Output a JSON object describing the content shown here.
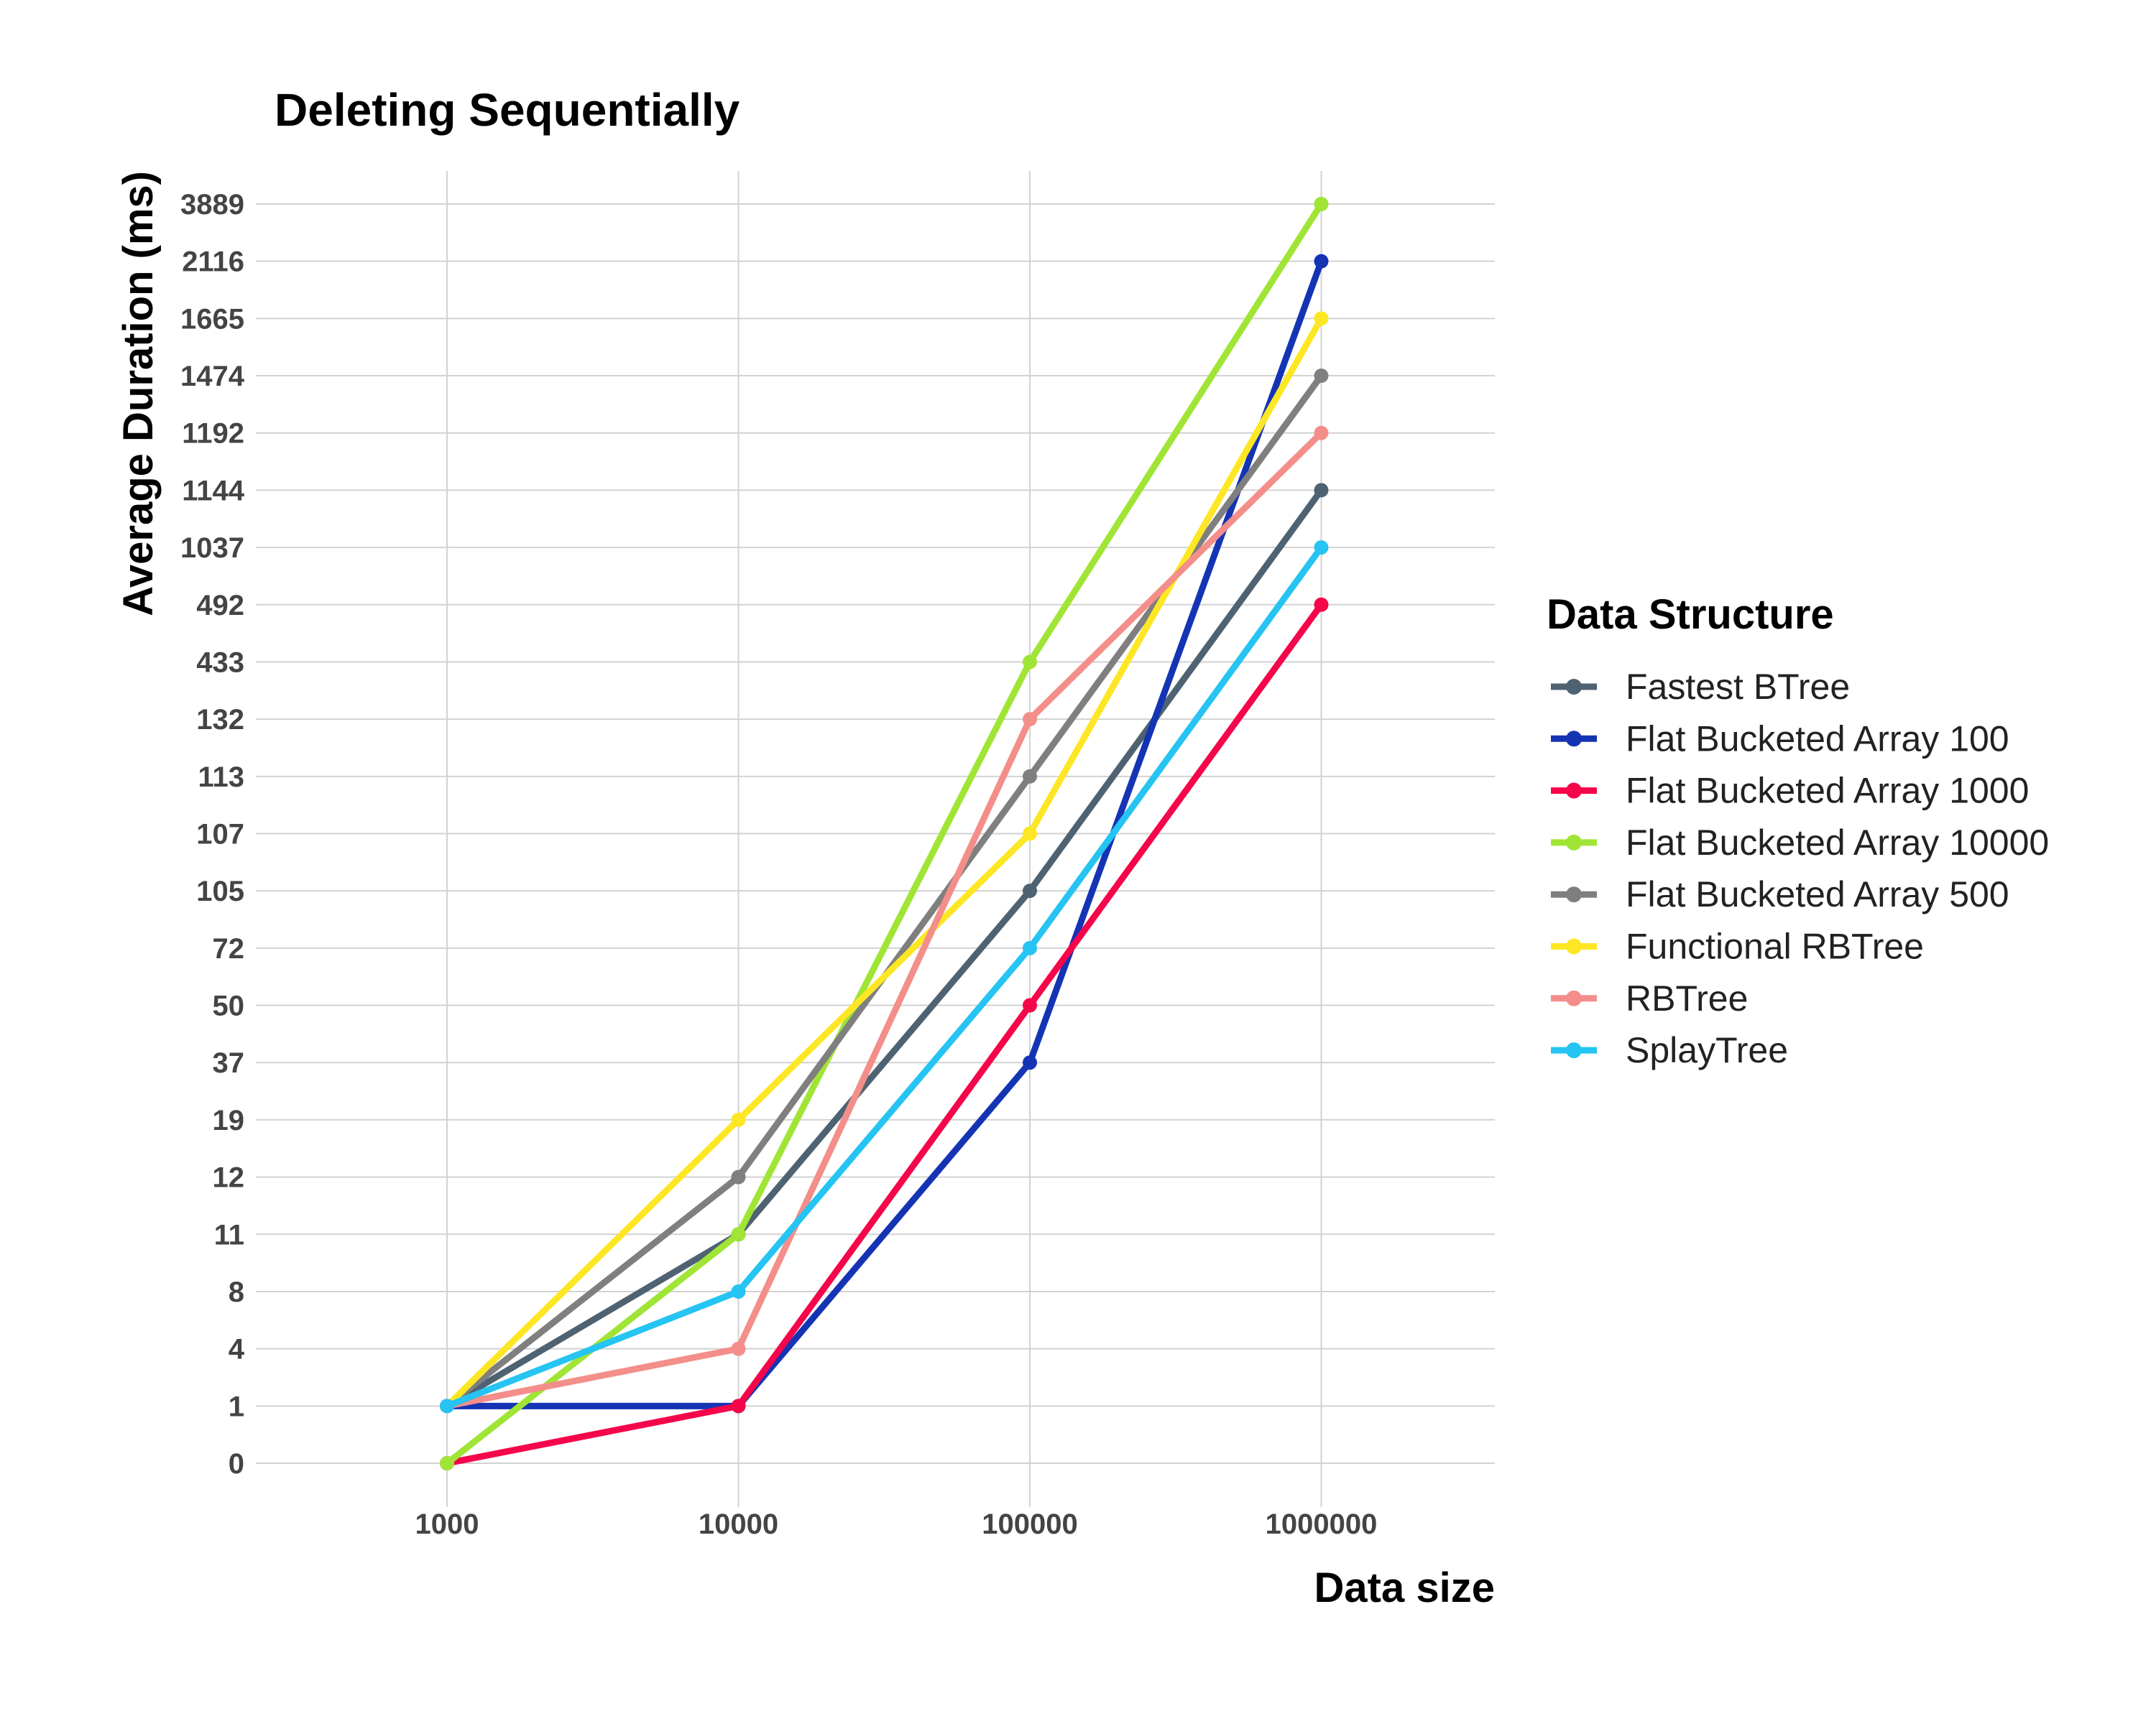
{
  "chart_data": {
    "type": "line",
    "title": "Deleting Sequentially",
    "xlabel": "Data size",
    "ylabel": "Average Duration (ms)",
    "x_scale": "log",
    "x": [
      1000,
      10000,
      100000,
      1000000
    ],
    "x_tick_labels": [
      "1000",
      "10000",
      "100000",
      "1000000"
    ],
    "y_scale": "categorical",
    "y_tick_labels": [
      "0",
      "1",
      "4",
      "8",
      "11",
      "12",
      "19",
      "37",
      "50",
      "72",
      "105",
      "107",
      "113",
      "132",
      "433",
      "492",
      "1037",
      "1144",
      "1192",
      "1474",
      "1665",
      "2116",
      "3889"
    ],
    "grid": true,
    "legend": {
      "title": "Data Structure",
      "placement": "right"
    },
    "series": [
      {
        "name": "Fastest BTree",
        "color": "#4f6272",
        "values": [
          1,
          11,
          105,
          1144
        ]
      },
      {
        "name": "Flat Bucketed Array 100",
        "color": "#1434b4",
        "values": [
          1,
          1,
          37,
          2116
        ]
      },
      {
        "name": "Flat Bucketed Array 1000",
        "color": "#f5054a",
        "values": [
          0,
          1,
          50,
          492
        ]
      },
      {
        "name": "Flat Bucketed Array 10000",
        "color": "#a0e535",
        "values": [
          0,
          11,
          433,
          3889
        ]
      },
      {
        "name": "Flat Bucketed Array 500",
        "color": "#7f7f7f",
        "values": [
          1,
          12,
          113,
          1474
        ]
      },
      {
        "name": "Functional RBTree",
        "color": "#fde724",
        "values": [
          1,
          19,
          107,
          1665
        ]
      },
      {
        "name": "RBTree",
        "color": "#f38e8a",
        "values": [
          1,
          4,
          132,
          1192
        ]
      },
      {
        "name": "SplayTree",
        "color": "#25c4f2",
        "values": [
          1,
          8,
          72,
          1037
        ]
      }
    ]
  }
}
